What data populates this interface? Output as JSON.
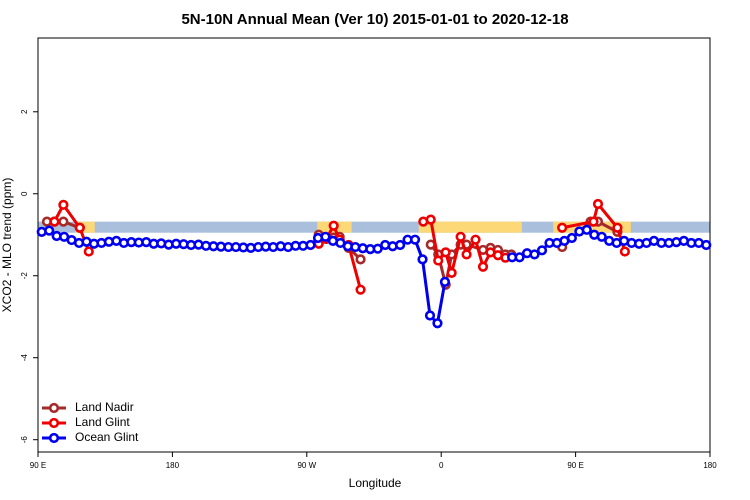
{
  "chart_data": {
    "type": "line",
    "title": "5N-10N Annual Mean (Ver 10)   2015-01-01 to 2020-12-18",
    "x_label": "Longitude",
    "y_label": "XCO2 - MLO trend (ppm)",
    "xlim": [
      90,
      540
    ],
    "ylim": [
      -6.3,
      3.8
    ],
    "xticks": [
      {
        "value": 90,
        "label": "90 E"
      },
      180,
      {
        "value": 270,
        "label": "90 W"
      },
      {
        "value": 360,
        "label": "0"
      },
      {
        "value": 450,
        "label": "90 E"
      },
      {
        "value": 540,
        "label": "180"
      }
    ],
    "yticks": [
      -6,
      -4,
      -2,
      0,
      2
    ],
    "legend": "bottom-left",
    "land_mask": {
      "ylim": [
        -0.95,
        -0.68
      ],
      "ocean_color": "#a9bfdc",
      "land_color": "#fdd876",
      "land": [
        [
          115,
          128
        ],
        [
          277,
          300
        ],
        [
          345,
          414
        ],
        [
          435,
          487
        ]
      ]
    },
    "series": [
      {
        "name": "Land Nadir",
        "color": "#a52a2a",
        "x": [
          96,
          101,
          107,
          118,
          null,
          278,
          283,
          288,
          292,
          298,
          306,
          null,
          353,
          358,
          363,
          367,
          373,
          377,
          388,
          393,
          398,
          403,
          407,
          null,
          441,
          460,
          465,
          478
        ],
        "values": [
          -0.68,
          -0.68,
          -0.68,
          -0.83,
          null,
          -1.0,
          -1.1,
          -1.07,
          -1.05,
          -1.32,
          -1.6,
          null,
          -1.24,
          -1.48,
          -2.22,
          -1.48,
          -1.24,
          -1.24,
          -1.37,
          -1.32,
          -1.37,
          -1.48,
          -1.48,
          null,
          -1.3,
          -0.68,
          -0.68,
          -0.93
        ]
      },
      {
        "name": "Land Glint",
        "color": "#ee0000",
        "x": [
          101,
          107,
          118,
          124,
          null,
          278,
          283,
          288,
          292,
          298,
          306,
          null,
          348,
          353,
          358,
          363,
          367,
          373,
          377,
          383,
          388,
          393,
          398,
          403,
          null,
          441,
          462,
          465,
          478,
          483
        ],
        "values": [
          -0.68,
          -0.27,
          -0.83,
          -1.41,
          null,
          -1.22,
          -1.1,
          -0.78,
          -1.12,
          -1.25,
          -2.34,
          null,
          -0.68,
          -0.63,
          -1.63,
          -1.43,
          -1.93,
          -1.05,
          -1.48,
          -1.12,
          -1.78,
          -1.43,
          -1.5,
          -1.56,
          null,
          -0.83,
          -0.68,
          -0.25,
          -0.83,
          -1.41
        ]
      },
      {
        "name": "Ocean Glint",
        "color": "#0000ee",
        "x": [
          92.5,
          97.5,
          102.5,
          107.5,
          112.5,
          117.5,
          122.5,
          127.5,
          132.5,
          137.5,
          142.5,
          147.5,
          152.5,
          157.5,
          162.5,
          167.5,
          172.5,
          177.5,
          182.5,
          187.5,
          192.5,
          197.5,
          202.5,
          207.5,
          212.5,
          217.5,
          222.5,
          227.5,
          232.5,
          237.5,
          242.5,
          247.5,
          252.5,
          257.5,
          262.5,
          267.5,
          272.5,
          277.5,
          282.5,
          287.5,
          292.5,
          297.5,
          302.5,
          307.5,
          312.5,
          317.5,
          322.5,
          327.5,
          332.5,
          337.5,
          342.5,
          347.5,
          352.5,
          357.5,
          362.5,
          null,
          407.5,
          412.5,
          417.5,
          422.5,
          427.5,
          432.5,
          437.5,
          442.5,
          447.5,
          452.5,
          457.5,
          462.5,
          467.5,
          472.5,
          477.5,
          482.5,
          487.5,
          492.5,
          497.5,
          502.5,
          507.5,
          512.5,
          517.5,
          522.5,
          527.5,
          532.5,
          537.5
        ],
        "values": [
          -0.93,
          -0.9,
          -1.03,
          -1.05,
          -1.13,
          -1.2,
          -1.17,
          -1.22,
          -1.2,
          -1.17,
          -1.15,
          -1.2,
          -1.18,
          -1.19,
          -1.18,
          -1.22,
          -1.21,
          -1.24,
          -1.22,
          -1.23,
          -1.25,
          -1.24,
          -1.27,
          -1.28,
          -1.29,
          -1.3,
          -1.3,
          -1.31,
          -1.32,
          -1.3,
          -1.29,
          -1.3,
          -1.28,
          -1.3,
          -1.27,
          -1.27,
          -1.25,
          -1.08,
          -1.05,
          -1.15,
          -1.2,
          -1.28,
          -1.3,
          -1.33,
          -1.35,
          -1.34,
          -1.25,
          -1.28,
          -1.25,
          -1.12,
          -1.12,
          -1.6,
          -2.97,
          -3.16,
          -2.15,
          null,
          -1.55,
          -1.55,
          -1.45,
          -1.48,
          -1.38,
          -1.2,
          -1.2,
          -1.15,
          -1.08,
          -0.92,
          -0.88,
          -1.0,
          -1.05,
          -1.15,
          -1.2,
          -1.15,
          -1.2,
          -1.22,
          -1.2,
          -1.15,
          -1.2,
          -1.2,
          -1.18,
          -1.15,
          -1.2,
          -1.2,
          -1.25
        ]
      }
    ]
  }
}
